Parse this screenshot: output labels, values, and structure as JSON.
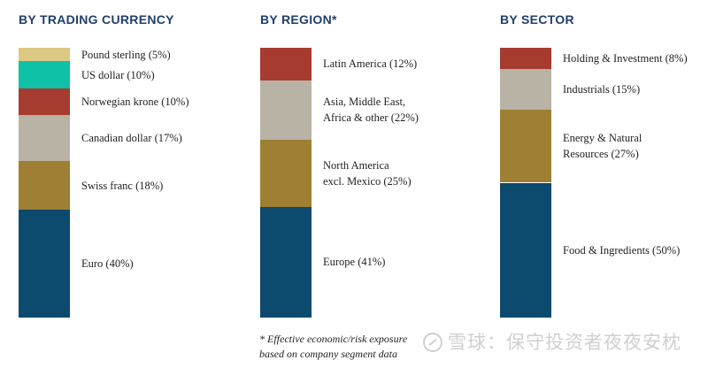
{
  "colors": {
    "title": "#1f3f6d",
    "teal": "#0fc1a6",
    "sand": "#dcc882",
    "red": "#a63c30",
    "grey": "#b8b3a4",
    "olive": "#9e7f34",
    "navy": "#0c4a6e"
  },
  "chart_data": [
    {
      "type": "bar",
      "title": "BY TRADING CURRENCY",
      "unit": "%",
      "segments": [
        {
          "label": "Pound sterling (5%)",
          "value": 5,
          "color": "#dcc882"
        },
        {
          "label": "US dollar (10%)",
          "value": 10,
          "color": "#0fc1a6"
        },
        {
          "label": "Norwegian krone (10%)",
          "value": 10,
          "color": "#a63c30"
        },
        {
          "label": "Canadian dollar (17%)",
          "value": 17,
          "color": "#b8b3a4"
        },
        {
          "label": "Swiss franc (18%)",
          "value": 18,
          "color": "#9e7f34"
        },
        {
          "label": "Euro (40%)",
          "value": 40,
          "color": "#0c4a6e"
        }
      ]
    },
    {
      "type": "bar",
      "title": "BY REGION*",
      "unit": "%",
      "segments": [
        {
          "label": "Latin America (12%)",
          "value": 12,
          "color": "#a63c30"
        },
        {
          "label": "Asia, Middle East,\nAfrica & other (22%)",
          "value": 22,
          "color": "#b8b3a4"
        },
        {
          "label": "North America\nexcl. Mexico (25%)",
          "value": 25,
          "color": "#9e7f34"
        },
        {
          "label": "Europe (41%)",
          "value": 41,
          "color": "#0c4a6e"
        }
      ]
    },
    {
      "type": "bar",
      "title": "BY SECTOR",
      "unit": "%",
      "segments": [
        {
          "label": "Holding & Investment (8%)",
          "value": 8,
          "color": "#a63c30"
        },
        {
          "label": "Industrials (15%)",
          "value": 15,
          "color": "#b8b3a4"
        },
        {
          "label": "Energy & Natural\nResources (27%)",
          "value": 27,
          "color": "#9e7f34"
        },
        {
          "label": "Food & Ingredients (50%)",
          "value": 50,
          "color": "#0c4a6e"
        }
      ]
    }
  ],
  "footnote": {
    "line1": "* Effective economic/risk exposure",
    "line2": "based on company segment data"
  },
  "watermark": "雪球：保守投资者夜夜安枕"
}
